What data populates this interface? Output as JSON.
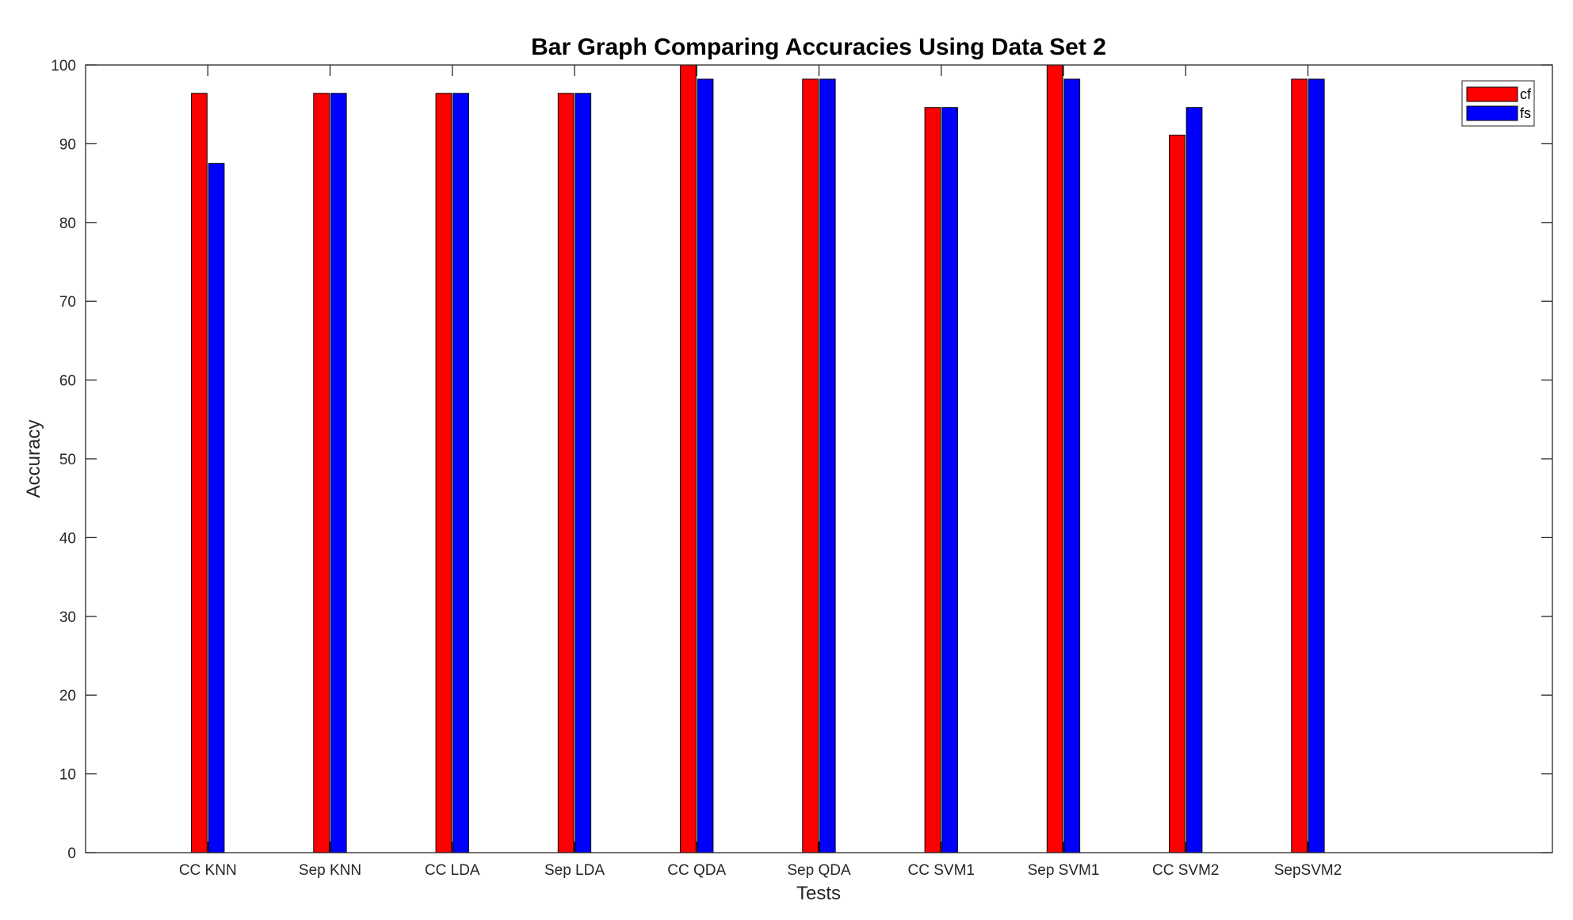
{
  "chart_data": {
    "type": "bar",
    "title": "Bar Graph Comparing Accuracies Using Data Set 2",
    "xlabel": "Tests",
    "ylabel": "Accuracy",
    "categories": [
      "CC KNN",
      "Sep KNN",
      "CC LDA",
      "Sep LDA",
      "CC QDA",
      "Sep QDA",
      "CC SVM1",
      "Sep SVM1",
      "CC SVM2",
      "SepSVM2"
    ],
    "series": [
      {
        "name": "cf",
        "color": "#ff0000",
        "values": [
          96.4,
          96.4,
          96.4,
          96.4,
          100,
          98.2,
          94.6,
          100,
          91.1,
          98.2
        ]
      },
      {
        "name": "fs",
        "color": "#0000ff",
        "values": [
          87.5,
          96.4,
          96.4,
          96.4,
          98.2,
          98.2,
          94.6,
          98.2,
          94.6,
          98.2
        ]
      }
    ],
    "ylim": [
      0,
      100
    ],
    "yticks": [
      0,
      10,
      20,
      30,
      40,
      50,
      60,
      70,
      80,
      90,
      100
    ],
    "xlim": [
      0,
      12
    ],
    "grid": false,
    "legend_position": "top-right"
  }
}
